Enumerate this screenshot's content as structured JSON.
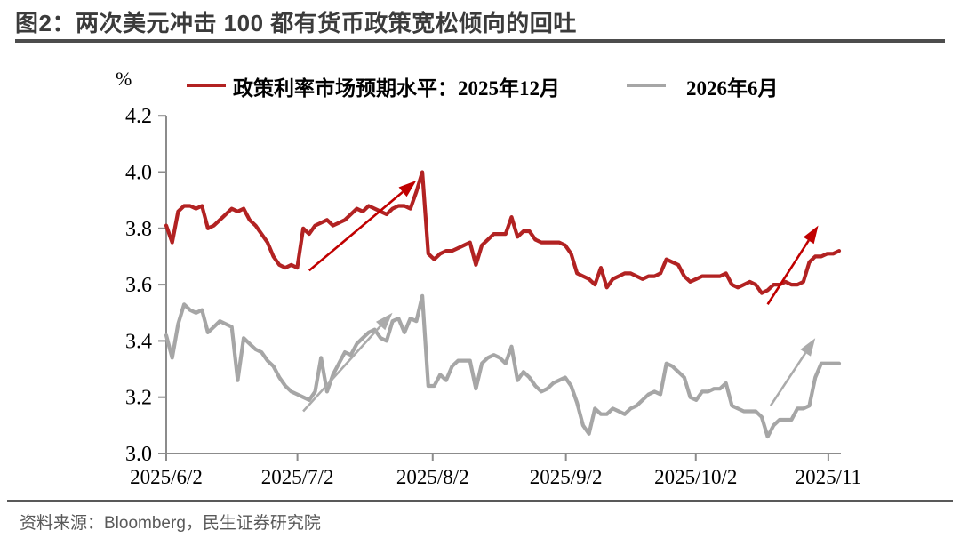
{
  "page": {
    "title": "图2：两次美元冲击 100 都有货币政策宽松倾向的回吐",
    "source_note": "资料来源：Bloomberg，民生证券研究院"
  },
  "chart_data": {
    "type": "line",
    "unit_label": "%",
    "grid": false,
    "legend_position": "top",
    "ylim": [
      3.0,
      4.2
    ],
    "y_ticks": [
      "3.0",
      "3.2",
      "3.4",
      "3.6",
      "3.8",
      "4.0",
      "4.2"
    ],
    "x_ticks": [
      {
        "label": "2025/6/2",
        "pos": 0.0
      },
      {
        "label": "2025/7/2",
        "pos": 0.195
      },
      {
        "label": "2025/8/2",
        "pos": 0.396
      },
      {
        "label": "2025/9/2",
        "pos": 0.594
      },
      {
        "label": "2025/10/2",
        "pos": 0.787
      },
      {
        "label": "2025/11",
        "pos": 0.984
      }
    ],
    "axis_color": "#8c8c8c",
    "series": [
      {
        "name": "政策利率市场预期水平：2025年12月",
        "color": "#b22222",
        "values": [
          3.81,
          3.75,
          3.86,
          3.88,
          3.88,
          3.87,
          3.88,
          3.8,
          3.81,
          3.83,
          3.85,
          3.87,
          3.86,
          3.87,
          3.83,
          3.81,
          3.78,
          3.75,
          3.7,
          3.67,
          3.66,
          3.67,
          3.66,
          3.8,
          3.78,
          3.81,
          3.82,
          3.83,
          3.81,
          3.82,
          3.83,
          3.85,
          3.87,
          3.86,
          3.88,
          3.87,
          3.86,
          3.85,
          3.87,
          3.88,
          3.88,
          3.87,
          3.93,
          4.0,
          3.71,
          3.69,
          3.71,
          3.72,
          3.72,
          3.73,
          3.74,
          3.75,
          3.67,
          3.74,
          3.76,
          3.78,
          3.78,
          3.78,
          3.84,
          3.77,
          3.79,
          3.79,
          3.76,
          3.75,
          3.75,
          3.75,
          3.75,
          3.74,
          3.71,
          3.64,
          3.63,
          3.62,
          3.6,
          3.66,
          3.59,
          3.62,
          3.63,
          3.64,
          3.64,
          3.63,
          3.62,
          3.63,
          3.63,
          3.64,
          3.69,
          3.68,
          3.67,
          3.63,
          3.61,
          3.62,
          3.63,
          3.63,
          3.63,
          3.63,
          3.64,
          3.6,
          3.59,
          3.6,
          3.61,
          3.6,
          3.57,
          3.58,
          3.6,
          3.6,
          3.61,
          3.6,
          3.6,
          3.61,
          3.68,
          3.7,
          3.7,
          3.71,
          3.71,
          3.72
        ]
      },
      {
        "name": "2026年6月",
        "color": "#a6a6a6",
        "values": [
          3.42,
          3.34,
          3.46,
          3.53,
          3.51,
          3.5,
          3.51,
          3.43,
          3.45,
          3.47,
          3.46,
          3.45,
          3.26,
          3.41,
          3.39,
          3.37,
          3.36,
          3.33,
          3.31,
          3.27,
          3.24,
          3.22,
          3.21,
          3.2,
          3.19,
          3.22,
          3.34,
          3.22,
          3.28,
          3.32,
          3.36,
          3.35,
          3.39,
          3.41,
          3.43,
          3.44,
          3.41,
          3.4,
          3.47,
          3.48,
          3.43,
          3.48,
          3.47,
          3.56,
          3.24,
          3.24,
          3.28,
          3.26,
          3.31,
          3.33,
          3.33,
          3.33,
          3.23,
          3.32,
          3.34,
          3.35,
          3.34,
          3.32,
          3.38,
          3.26,
          3.29,
          3.27,
          3.24,
          3.22,
          3.23,
          3.25,
          3.26,
          3.27,
          3.24,
          3.18,
          3.1,
          3.07,
          3.16,
          3.14,
          3.14,
          3.16,
          3.15,
          3.14,
          3.16,
          3.17,
          3.19,
          3.21,
          3.22,
          3.21,
          3.32,
          3.31,
          3.29,
          3.27,
          3.2,
          3.19,
          3.22,
          3.22,
          3.23,
          3.23,
          3.25,
          3.17,
          3.16,
          3.15,
          3.15,
          3.15,
          3.13,
          3.06,
          3.1,
          3.12,
          3.12,
          3.12,
          3.16,
          3.16,
          3.17,
          3.27,
          3.32,
          3.32,
          3.32,
          3.32
        ]
      }
    ],
    "annotations": {
      "arrows": [
        {
          "color": "#c00000",
          "from": [
            24,
            3.65
          ],
          "to": [
            42,
            3.97
          ]
        },
        {
          "color": "#ababab",
          "from": [
            23,
            3.15
          ],
          "to": [
            38,
            3.5
          ]
        },
        {
          "color": "#c00000",
          "from": [
            101,
            3.53
          ],
          "to": [
            109.5,
            3.81
          ]
        },
        {
          "color": "#ababab",
          "from": [
            101.5,
            3.17
          ],
          "to": [
            109,
            3.41
          ]
        }
      ]
    }
  }
}
